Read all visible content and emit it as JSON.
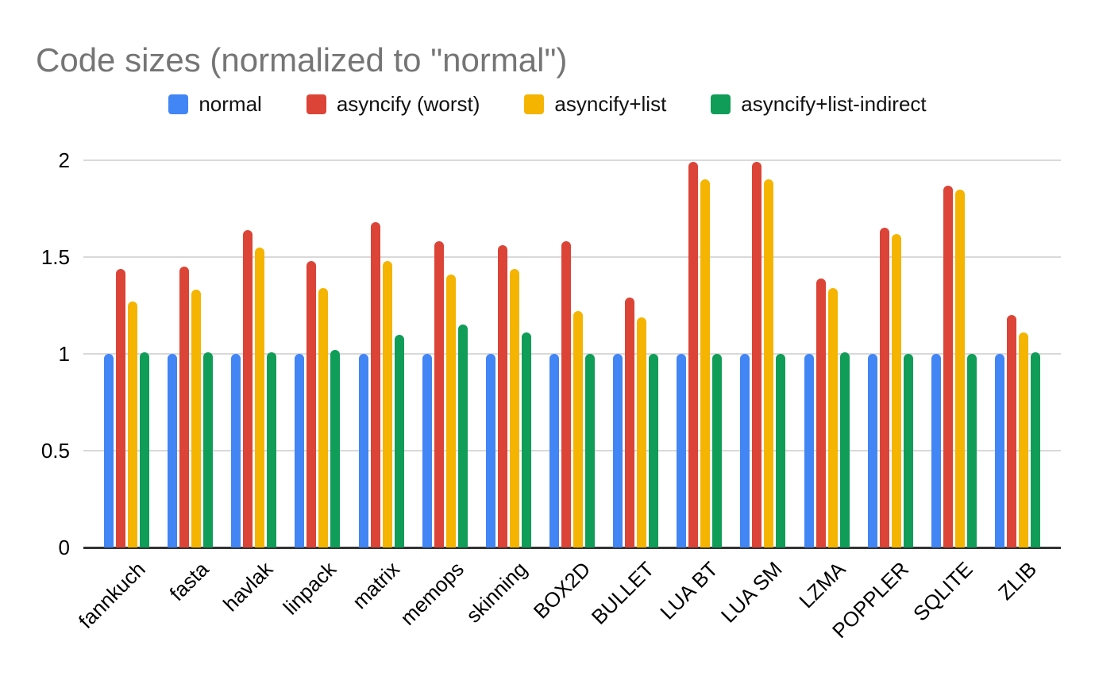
{
  "page": {
    "background": "#ffffff"
  },
  "chart_data": {
    "type": "bar",
    "title": "Code sizes (normalized to \"normal\")",
    "title_color": "#757575",
    "categories": [
      "fannkuch",
      "fasta",
      "havlak",
      "linpack",
      "matrix",
      "memops",
      "skinning",
      "BOX2D",
      "BULLET",
      "LUA BT",
      "LUA SM",
      "LZMA",
      "POPPLER",
      "SQLITE",
      "ZLIB"
    ],
    "series": [
      {
        "name": "normal",
        "color": "#4285F4",
        "values": [
          1.0,
          1.0,
          1.0,
          1.0,
          1.0,
          1.0,
          1.0,
          1.0,
          1.0,
          1.0,
          1.0,
          1.0,
          1.0,
          1.0,
          1.0
        ]
      },
      {
        "name": "asyncify (worst)",
        "color": "#DB4437",
        "values": [
          1.44,
          1.45,
          1.64,
          1.48,
          1.68,
          1.58,
          1.56,
          1.58,
          1.29,
          1.99,
          1.99,
          1.39,
          1.65,
          1.87,
          1.2
        ]
      },
      {
        "name": "asyncify+list",
        "color": "#F4B400",
        "values": [
          1.27,
          1.33,
          1.55,
          1.34,
          1.48,
          1.41,
          1.44,
          1.22,
          1.19,
          1.9,
          1.9,
          1.34,
          1.62,
          1.85,
          1.11
        ]
      },
      {
        "name": "asyncify+list-indirect",
        "color": "#0F9D58",
        "values": [
          1.01,
          1.01,
          1.01,
          1.02,
          1.1,
          1.15,
          1.11,
          1.0,
          1.0,
          1.0,
          1.0,
          1.01,
          1.0,
          1.0,
          1.01
        ]
      }
    ],
    "xlabel": "",
    "ylabel": "",
    "y_axis": {
      "min": 0,
      "max": 2,
      "ticks": [
        0,
        0.5,
        1,
        1.5,
        2
      ],
      "tick_labels": [
        "0",
        "0.5",
        "1",
        "1.5",
        "2"
      ]
    },
    "legend_position": "top",
    "grid": true,
    "gridline_color": "#d9d9d9",
    "baseline_color": "#333333",
    "x_label_rotation_deg": -45
  }
}
